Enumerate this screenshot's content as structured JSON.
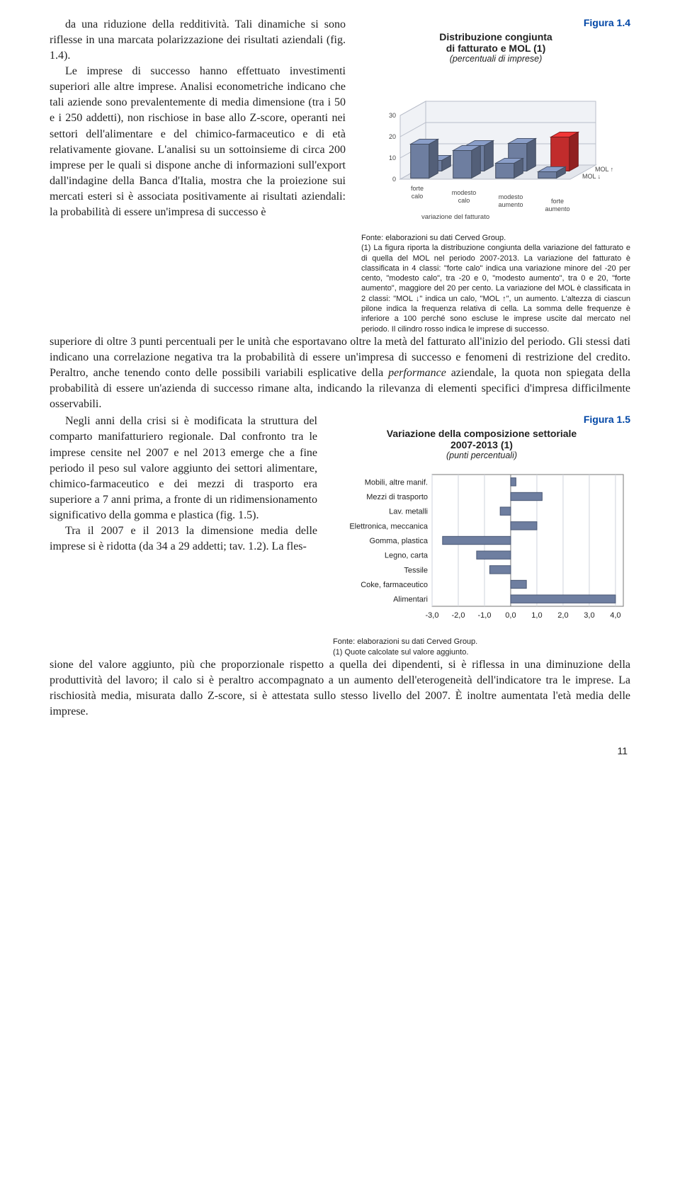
{
  "figure14": {
    "label": "Figura 1.4",
    "title_line1": "Distribuzione congiunta",
    "title_line2": "di fatturato e MOL (1)",
    "subtitle": "(percentuali di imprese)",
    "caption_source": "Fonte: elaborazioni su dati Cerved Group.",
    "caption_body": "(1) La figura riporta la distribuzione congiunta della variazione del fatturato e di quella del MOL nel periodo 2007-2013. La variazione del fatturato è classificata in 4 classi: \"forte calo\" indica una variazione minore del -20 per cento, \"modesto calo\", tra -20 e 0, \"modesto aumento\", tra 0 e 20, \"forte aumento\", maggiore del 20 per cento. La variazione del MOL è classificata in 2 classi: \"MOL ↓\" indica un calo, \"MOL ↑\", un aumento. L'altezza di ciascun pilone indica la frequenza relativa di cella. La somma delle frequenze è inferiore a 100 perché sono escluse le imprese uscite dal mercato nel periodo. Il cilindro rosso indica le imprese di successo.",
    "chart": {
      "type": "3d-bar",
      "x_categories": [
        "forte calo",
        "modesto calo",
        "modesto aumento",
        "forte aumento"
      ],
      "x_axis_label": "variazione del fatturato",
      "z_categories": [
        "MOL ↓",
        "MOL ↑"
      ],
      "y_ticks": [
        0,
        10,
        20,
        30
      ],
      "bars": [
        {
          "xi": 0,
          "zi": 0,
          "value": 16,
          "color": "#6e7ea0"
        },
        {
          "xi": 0,
          "zi": 1,
          "value": 5,
          "color": "#6e7ea0"
        },
        {
          "xi": 1,
          "zi": 0,
          "value": 13,
          "color": "#6e7ea0"
        },
        {
          "xi": 1,
          "zi": 1,
          "value": 12,
          "color": "#6e7ea0"
        },
        {
          "xi": 2,
          "zi": 0,
          "value": 7,
          "color": "#6e7ea0"
        },
        {
          "xi": 2,
          "zi": 1,
          "value": 13,
          "color": "#6e7ea0"
        },
        {
          "xi": 3,
          "zi": 0,
          "value": 3,
          "color": "#6e7ea0"
        },
        {
          "xi": 3,
          "zi": 1,
          "value": 16,
          "color": "#c12c2c"
        }
      ],
      "bg_floor": "#e3e6ec",
      "bg_wall": "#f0f2f6",
      "grid_color": "#b8bdc9",
      "axis_text_color": "#444444"
    }
  },
  "block1_text": "da una riduzione della redditività. Tali dinamiche si sono riflesse in una marcata polarizzazione dei risultati aziendali (fig. 1.4).",
  "block2_text_a": "Le imprese di successo hanno effettuato investimenti superiori alle altre imprese. Analisi econometriche indicano che tali aziende sono prevalentemente di media dimensione (tra i 50 e i 250 addetti), non rischiose in base allo Z-score, operanti nei settori dell'alimentare e del chimico-farmaceutico e di età relativamente giovane. L'analisi su un sottoinsieme di circa 200 imprese per le quali si dispone anche di informazioni sull'export dall'indagine della Banca d'Italia, mostra che la proiezione sui mercati esteri si è associata positivamente ai risultati aziendali: la probabilità di essere un'impresa di successo è",
  "block2_text_b": "superiore di oltre 3 punti percentuali per le unità che esportavano oltre la metà del fatturato all'inizio del periodo. Gli stessi dati indicano una correlazione negativa tra la probabilità di essere un'impresa di successo e fenomeni di restrizione del credito. Peraltro, anche tenendo conto delle possibili variabili esplicative della ",
  "block2_text_b_em": "performance",
  "block2_text_b_end": " aziendale, la quota non spiegata della probabilità di essere un'azienda di successo rimane alta, indicando la rilevanza di elementi specifici d'impresa difficilmente osservabili.",
  "block3_text": "Negli anni della crisi si è modificata la struttura del comparto manifatturiero regionale. Dal confronto tra le imprese censite nel 2007 e nel 2013 emerge che a fine periodo il peso sul valore aggiunto dei settori alimentare, chimico-farmaceutico e dei mezzi di trasporto era superiore a 7 anni prima, a fronte di un ridimensionamento significativo della gomma e plastica (fig. 1.5).",
  "block4_text_a": "Tra il 2007 e il 2013 la dimensione media delle imprese si è ridotta (da 34 a 29 addetti; tav. 1.2). La fles-",
  "block4_text_b": "sione del valore aggiunto, più che proporzionale rispetto a quella dei dipendenti, si è riflessa in una diminuzione della produttività del lavoro; il calo si è peraltro accompagnato a un aumento dell'eterogeneità dell'indicatore tra le imprese. La rischiosità media, misurata dallo Z-score, si è attestata sullo stesso livello del 2007. È inoltre aumentata l'età media delle imprese.",
  "figure15": {
    "label": "Figura 1.5",
    "title_line1": "Variazione della composizione settoriale",
    "title_line2": "2007-2013 (1)",
    "subtitle": "(punti percentuali)",
    "caption_source": "Fonte: elaborazioni su dati Cerved Group.",
    "caption_note": "(1) Quote calcolate sul valore aggiunto.",
    "chart": {
      "type": "bar-horizontal",
      "categories": [
        "Mobili, altre manif.",
        "Mezzi di trasporto",
        "Lav. metalli",
        "Elettronica, meccanica",
        "Gomma, plastica",
        "Legno, carta",
        "Tessile",
        "Coke, farmaceutico",
        "Alimentari"
      ],
      "values": [
        0.2,
        1.2,
        -0.4,
        1.0,
        -2.6,
        -1.3,
        -0.8,
        0.6,
        4.0
      ],
      "x_ticks": [
        -3.0,
        -2.0,
        -1.0,
        0.0,
        1.0,
        2.0,
        3.0,
        4.0
      ],
      "xlim": [
        -3.0,
        4.3
      ],
      "bar_color": "#6e7ea0",
      "grid_color": "#cfd3dc",
      "plot_bg": "#ffffff",
      "border_color": "#777777"
    }
  },
  "page_number": "11"
}
